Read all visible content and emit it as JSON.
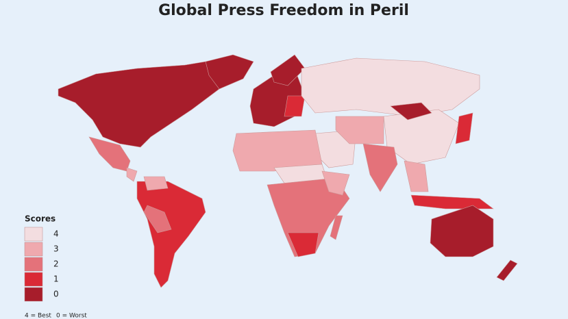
{
  "title": "Global Press Freedom in Peril",
  "legend": {
    "title": "Scores",
    "items": [
      {
        "label": "4",
        "color": "#f3dde0"
      },
      {
        "label": "3",
        "color": "#efa9ae"
      },
      {
        "label": "2",
        "color": "#e4727a"
      },
      {
        "label": "1",
        "color": "#da2a36"
      },
      {
        "label": "0",
        "color": "#a71d2b"
      }
    ]
  },
  "footnote": [
    "4 = Best",
    "0 = Worst"
  ]
}
